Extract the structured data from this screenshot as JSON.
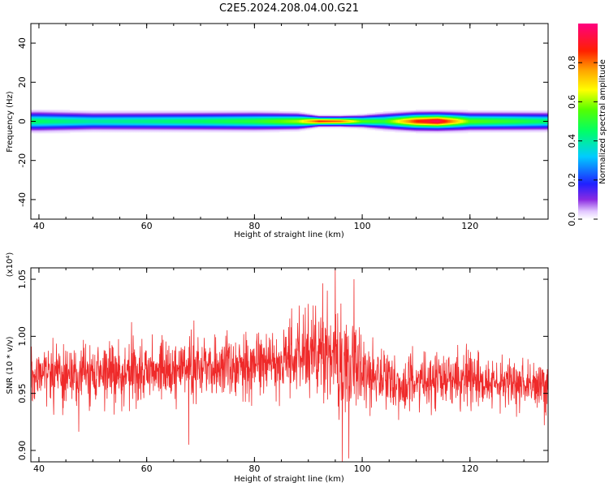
{
  "title": "C2E5.2024.208.04.00.G21",
  "colors": {
    "snr_line": "#ef2a2a",
    "axis": "#000000"
  },
  "chart_data": [
    {
      "type": "heatmap",
      "xlabel": "Height of straight line (km)",
      "ylabel": "Frequency (Hz)",
      "xlim": [
        38.5,
        134.5
      ],
      "ylim": [
        -50,
        50
      ],
      "xticks": [
        "40",
        "60",
        "80",
        "100",
        "120"
      ],
      "yticks": [
        "-40",
        "-20",
        "0",
        "20",
        "40"
      ],
      "colorbar": {
        "label": "Normalized spectral amplitude",
        "range": [
          0,
          1
        ],
        "ticks": [
          "0.0",
          "0.2",
          "0.4",
          "0.6",
          "0.8"
        ],
        "colormap": "rainbow (white-violet-blue-cyan-green-yellow-orange-red-magenta)"
      },
      "band": {
        "center_hz": 0,
        "core_halfwidth_hz": 1,
        "envelope": [
          {
            "height": 40,
            "halfwidth_hz": 5,
            "peak": 0.45
          },
          {
            "height": 50,
            "halfwidth_hz": 4.5,
            "peak": 0.4
          },
          {
            "height": 60,
            "halfwidth_hz": 4.5,
            "peak": 0.42
          },
          {
            "height": 70,
            "halfwidth_hz": 4.5,
            "peak": 0.45
          },
          {
            "height": 80,
            "halfwidth_hz": 4.5,
            "peak": 0.5
          },
          {
            "height": 88,
            "halfwidth_hz": 4,
            "peak": 0.6
          },
          {
            "height": 92,
            "halfwidth_hz": 2.5,
            "peak": 0.85
          },
          {
            "height": 96,
            "halfwidth_hz": 2.5,
            "peak": 0.8
          },
          {
            "height": 100,
            "halfwidth_hz": 3,
            "peak": 0.55
          },
          {
            "height": 104,
            "halfwidth_hz": 4,
            "peak": 0.5
          },
          {
            "height": 110,
            "halfwidth_hz": 4.5,
            "peak": 0.85
          },
          {
            "height": 114,
            "halfwidth_hz": 4.5,
            "peak": 0.95
          },
          {
            "height": 120,
            "halfwidth_hz": 4.5,
            "peak": 0.55
          },
          {
            "height": 128,
            "halfwidth_hz": 4.5,
            "peak": 0.5
          },
          {
            "height": 134,
            "halfwidth_hz": 4.5,
            "peak": 0.45
          }
        ]
      }
    },
    {
      "type": "line",
      "xlabel": "Height of straight line (km)",
      "ylabel": "SNR (10 * v/v)",
      "yscale_label": "(x10⁴)",
      "xlim": [
        38.5,
        134.5
      ],
      "ylim": [
        0.89,
        1.06
      ],
      "xticks": [
        "40",
        "60",
        "80",
        "100",
        "120"
      ],
      "yticks": [
        "0.90",
        "0.95",
        "1.00",
        "1.05"
      ],
      "series": [
        {
          "trend": [
            {
              "x": 38.5,
              "y": 0.965
            },
            {
              "x": 50,
              "y": 0.968
            },
            {
              "x": 60,
              "y": 0.968
            },
            {
              "x": 70,
              "y": 0.972
            },
            {
              "x": 80,
              "y": 0.975
            },
            {
              "x": 88,
              "y": 0.978
            },
            {
              "x": 93,
              "y": 0.985
            },
            {
              "x": 96,
              "y": 0.975
            },
            {
              "x": 100,
              "y": 0.966
            },
            {
              "x": 108,
              "y": 0.96
            },
            {
              "x": 115,
              "y": 0.962
            },
            {
              "x": 125,
              "y": 0.96
            },
            {
              "x": 134.5,
              "y": 0.955
            }
          ],
          "noise_amplitude": [
            {
              "x": 38.5,
              "y": 0.03
            },
            {
              "x": 80,
              "y": 0.03
            },
            {
              "x": 92,
              "y": 0.045
            },
            {
              "x": 97,
              "y": 0.05
            },
            {
              "x": 102,
              "y": 0.03
            },
            {
              "x": 134.5,
              "y": 0.025
            }
          ],
          "extremes": [
            {
              "x": 95.0,
              "y": 1.06
            },
            {
              "x": 96.3,
              "y": 0.89
            },
            {
              "x": 97.5,
              "y": 0.893
            },
            {
              "x": 98.5,
              "y": 1.05
            },
            {
              "x": 67.8,
              "y": 0.905
            },
            {
              "x": 93.5,
              "y": 1.04
            }
          ]
        }
      ]
    }
  ]
}
